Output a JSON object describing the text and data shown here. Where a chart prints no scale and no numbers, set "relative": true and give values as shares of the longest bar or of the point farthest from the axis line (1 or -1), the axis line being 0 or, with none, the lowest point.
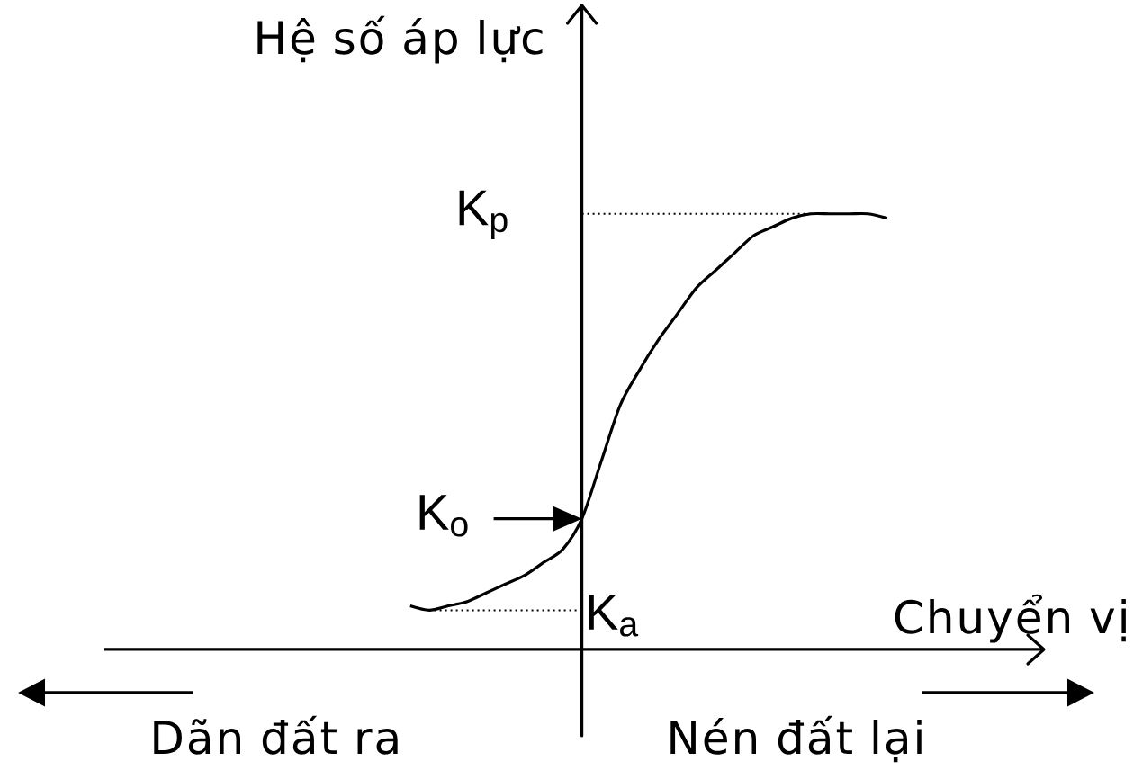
{
  "chart_data": {
    "type": "line",
    "relative": true,
    "xlabel": "Chuyển vị",
    "ylabel": "Hệ số áp lực",
    "categories": [
      null,
      null,
      null,
      null,
      null,
      null,
      null,
      null,
      null,
      null,
      null,
      null,
      null,
      null,
      null,
      null,
      null,
      null,
      null,
      null,
      null,
      null,
      null,
      null,
      null,
      null
    ],
    "series": [
      {
        "color": "#000000",
        "values": [
          0.1,
          0.09,
          0.1,
          0.11,
          0.13,
          0.15,
          0.17,
          0.2,
          0.23,
          0.3,
          0.43,
          0.56,
          0.64,
          0.71,
          0.77,
          0.83,
          0.87,
          0.91,
          0.95,
          0.97,
          0.99,
          1,
          1,
          1,
          1,
          0.99
        ]
      }
    ],
    "ref_lines": [
      {
        "axis": "y",
        "value": 1,
        "label": "K$_{p}$",
        "line_style": "dotted"
      },
      {
        "axis": "y",
        "value": 0.09,
        "label": "K$_{a}$",
        "line_style": "dotted"
      }
    ],
    "annotations": [
      "K$_{o}$",
      "Dãn đất ra",
      "Nén đất lại"
    ],
    "marker": "none",
    "line_style": "solid"
  }
}
